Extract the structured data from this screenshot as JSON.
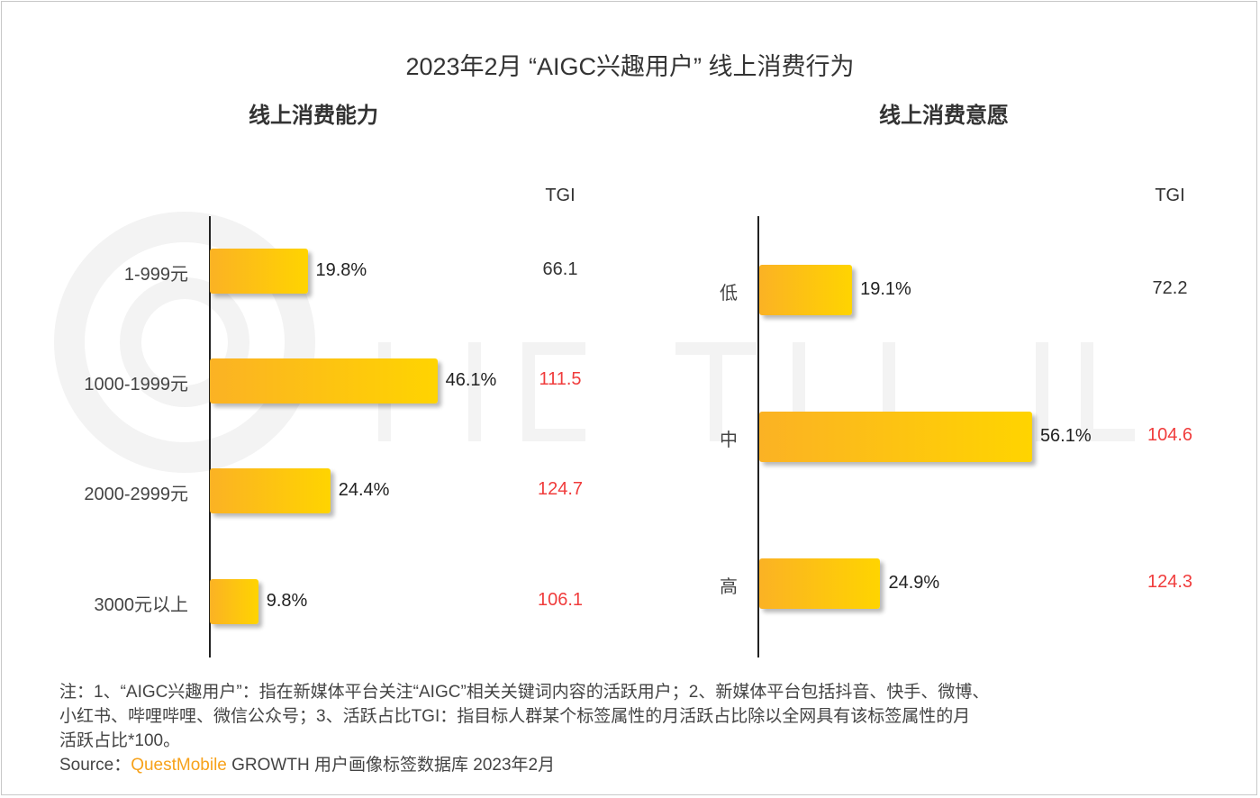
{
  "title": "2023年2月 “AIGC兴趣用户” 线上消费行为",
  "watermark": "QUESTMOBILE",
  "tgi_header": "TGI",
  "chart_data": [
    {
      "type": "bar",
      "orientation": "horizontal",
      "title": "线上消费能力",
      "categories": [
        "1-999元",
        "1000-1999元",
        "2000-2999元",
        "3000元以上"
      ],
      "values": [
        19.8,
        46.1,
        24.4,
        9.8
      ],
      "labels": [
        "19.8%",
        "46.1%",
        "24.4%",
        "9.8%"
      ],
      "tgi": [
        "66.1",
        "111.5",
        "124.7",
        "106.1"
      ],
      "tgi_highlight": [
        false,
        true,
        true,
        true
      ],
      "unit": "%"
    },
    {
      "type": "bar",
      "orientation": "horizontal",
      "title": "线上消费意愿",
      "categories": [
        "低",
        "中",
        "高"
      ],
      "values": [
        19.1,
        56.1,
        24.9
      ],
      "labels": [
        "19.1%",
        "56.1%",
        "24.9%"
      ],
      "tgi": [
        "72.2",
        "104.6",
        "124.3"
      ],
      "tgi_highlight": [
        false,
        true,
        true
      ],
      "unit": "%"
    }
  ],
  "colors": {
    "bar_start": "#fbb224",
    "bar_end": "#ffd400",
    "tgi_high": "#f03c3c",
    "tgi_normal": "#333333",
    "brand": "#f7a21b"
  },
  "notes": {
    "line1": "注：1、“AIGC兴趣用户”：指在新媒体平台关注“AIGC”相关关键词内容的活跃用户；2、新媒体平台包括抖音、快手、微博、",
    "line2": "小红书、哔哩哔哩、微信公众号；3、活跃占比TGI：指目标人群某个标签属性的月活跃占比除以全网具有该标签属性的月",
    "line3": "活跃占比*100。",
    "source_label": "Source：",
    "source_brand": "QuestMobile",
    "source_rest": " GROWTH 用户画像标签数据库 2023年2月"
  }
}
